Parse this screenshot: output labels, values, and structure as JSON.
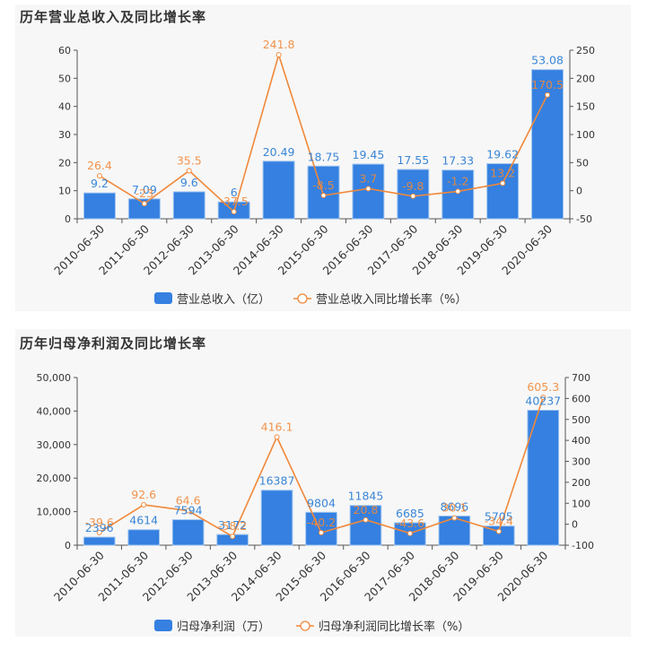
{
  "chart_data": [
    {
      "type": "bar+line",
      "title": "历年营业总收入及同比增长率",
      "categories": [
        "2010-06-30",
        "2011-06-30",
        "2012-06-30",
        "2013-06-30",
        "2014-06-30",
        "2015-06-30",
        "2016-06-30",
        "2017-06-30",
        "2018-06-30",
        "2019-06-30",
        "2020-06-30"
      ],
      "series": [
        {
          "name": "营业总收入（亿）",
          "type": "bar",
          "axis": "left",
          "color": "#3580e0",
          "values": [
            9.2,
            7.09,
            9.6,
            6,
            20.49,
            18.75,
            19.45,
            17.55,
            17.33,
            19.62,
            53.08
          ],
          "labels": [
            "9.2",
            "7.09",
            "9.6",
            "6",
            "20.49",
            "18.75",
            "19.45",
            "17.55",
            "17.33",
            "19.62",
            "53.08"
          ]
        },
        {
          "name": "营业总收入同比增长率（%）",
          "type": "line",
          "axis": "right",
          "color": "#f0883a",
          "values": [
            26.4,
            -23,
            35.5,
            -37.5,
            241.8,
            -8.5,
            3.7,
            -9.8,
            -1.2,
            13.2,
            170.5
          ],
          "labels": [
            "26.4",
            "-23",
            "35.5",
            "-37.5",
            "241.8",
            "-8.5",
            "3.7",
            "-9.8",
            "-1.2",
            "13.2",
            "170.5"
          ]
        }
      ],
      "yleft": {
        "min": 0,
        "max": 60,
        "ticks": [
          "0",
          "10",
          "20",
          "30",
          "40",
          "50",
          "60"
        ]
      },
      "yright": {
        "min": -50,
        "max": 250,
        "ticks": [
          "-50",
          "0",
          "50",
          "100",
          "150",
          "200",
          "250"
        ]
      },
      "legend": [
        "营业总收入（亿）",
        "营业总收入同比增长率（%）"
      ],
      "legend_position": "bottom",
      "grid": false
    },
    {
      "type": "bar+line",
      "title": "历年归母净利润及同比增长率",
      "categories": [
        "2010-06-30",
        "2011-06-30",
        "2012-06-30",
        "2013-06-30",
        "2014-06-30",
        "2015-06-30",
        "2016-06-30",
        "2017-06-30",
        "2018-06-30",
        "2019-06-30",
        "2020-06-30"
      ],
      "series": [
        {
          "name": "归母净利润（万）",
          "type": "bar",
          "axis": "left",
          "color": "#3580e0",
          "values": [
            2396,
            4614,
            7594,
            3172,
            16387,
            9804,
            11845,
            6685,
            8696,
            5705,
            40237
          ],
          "labels": [
            "2396",
            "4614",
            "7594",
            "3172",
            "16387",
            "9804",
            "11845",
            "6685",
            "8696",
            "5705",
            "40237"
          ]
        },
        {
          "name": "归母净利润同比增长率（%）",
          "type": "line",
          "axis": "right",
          "color": "#f0883a",
          "values": [
            -39.6,
            92.6,
            64.6,
            -58.2,
            416.1,
            -40.2,
            20.8,
            -43.6,
            30.1,
            -34.4,
            605.3
          ],
          "labels": [
            "-39.6",
            "92.6",
            "64.6",
            "-58.2",
            "416.1",
            "-40.2",
            "20.8",
            "-43.6",
            "30.1",
            "-34.4",
            "605.3"
          ]
        }
      ],
      "yleft": {
        "min": 0,
        "max": 50000,
        "ticks": [
          "0",
          "10,000",
          "20,000",
          "30,000",
          "40,000",
          "50,000"
        ]
      },
      "yright": {
        "min": -100,
        "max": 700,
        "ticks": [
          "-100",
          "0",
          "100",
          "200",
          "300",
          "400",
          "500",
          "600",
          "700"
        ]
      },
      "legend": [
        "归母净利润（万）",
        "归母净利润同比增长率（%）"
      ],
      "legend_position": "bottom",
      "grid": false
    }
  ]
}
